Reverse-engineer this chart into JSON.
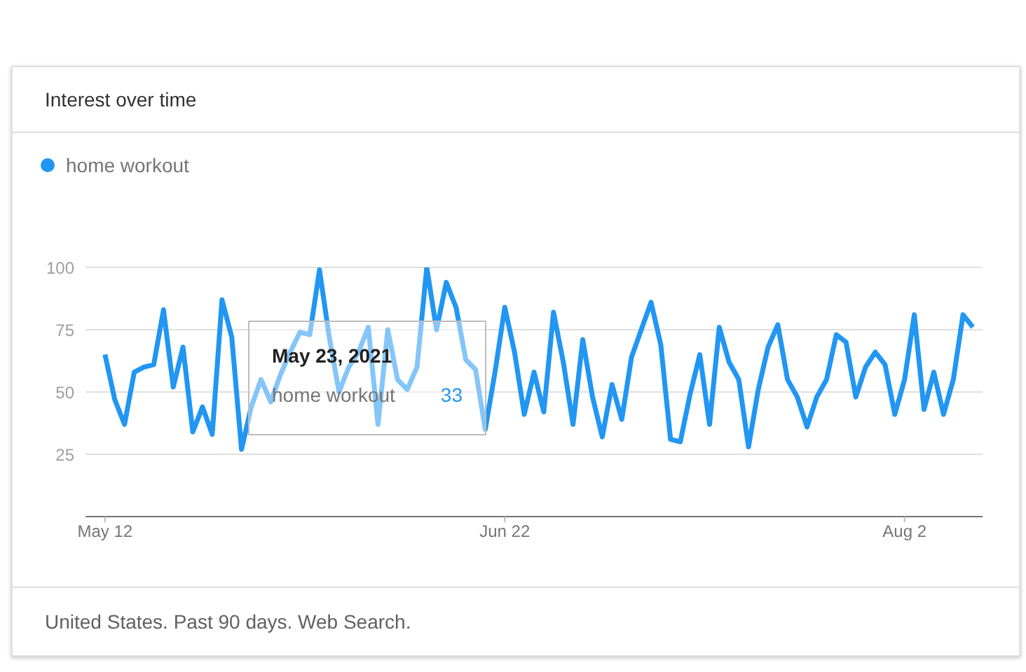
{
  "chart_data": {
    "type": "line",
    "title": "Interest over time",
    "x": [
      "2021-05-12",
      "2021-05-13",
      "2021-05-14",
      "2021-05-15",
      "2021-05-16",
      "2021-05-17",
      "2021-05-18",
      "2021-05-19",
      "2021-05-20",
      "2021-05-21",
      "2021-05-22",
      "2021-05-23",
      "2021-05-24",
      "2021-05-25",
      "2021-05-26",
      "2021-05-27",
      "2021-05-28",
      "2021-05-29",
      "2021-05-30",
      "2021-05-31",
      "2021-06-01",
      "2021-06-02",
      "2021-06-03",
      "2021-06-04",
      "2021-06-05",
      "2021-06-06",
      "2021-06-07",
      "2021-06-08",
      "2021-06-09",
      "2021-06-10",
      "2021-06-11",
      "2021-06-12",
      "2021-06-13",
      "2021-06-14",
      "2021-06-15",
      "2021-06-16",
      "2021-06-17",
      "2021-06-18",
      "2021-06-19",
      "2021-06-20",
      "2021-06-21",
      "2021-06-22",
      "2021-06-23",
      "2021-06-24",
      "2021-06-25",
      "2021-06-26",
      "2021-06-27",
      "2021-06-28",
      "2021-06-29",
      "2021-06-30",
      "2021-07-01",
      "2021-07-02",
      "2021-07-03",
      "2021-07-04",
      "2021-07-05",
      "2021-07-06",
      "2021-07-07",
      "2021-07-08",
      "2021-07-09",
      "2021-07-10",
      "2021-07-11",
      "2021-07-12",
      "2021-07-13",
      "2021-07-14",
      "2021-07-15",
      "2021-07-16",
      "2021-07-17",
      "2021-07-18",
      "2021-07-19",
      "2021-07-20",
      "2021-07-21",
      "2021-07-22",
      "2021-07-23",
      "2021-07-24",
      "2021-07-25",
      "2021-07-26",
      "2021-07-27",
      "2021-07-28",
      "2021-07-29",
      "2021-07-30",
      "2021-07-31",
      "2021-08-01",
      "2021-08-02",
      "2021-08-03",
      "2021-08-04",
      "2021-08-05",
      "2021-08-06",
      "2021-08-07",
      "2021-08-08",
      "2021-08-09"
    ],
    "series": [
      {
        "name": "home workout",
        "color": "#2196f3",
        "values": [
          65,
          47,
          37,
          58,
          60,
          61,
          83,
          52,
          68,
          34,
          44,
          33,
          87,
          72,
          27,
          44,
          55,
          46,
          57,
          66,
          74,
          73,
          99,
          72,
          50,
          60,
          66,
          76,
          37,
          75,
          55,
          51,
          60,
          100,
          75,
          94,
          84,
          63,
          59,
          35,
          58,
          84,
          66,
          41,
          58,
          42,
          82,
          62,
          37,
          71,
          48,
          32,
          53,
          39,
          64,
          75,
          86,
          69,
          31,
          30,
          49,
          65,
          37,
          76,
          62,
          55,
          28,
          51,
          68,
          77,
          55,
          48,
          36,
          48,
          55,
          73,
          70,
          48,
          60,
          66,
          61,
          41,
          55,
          81,
          43,
          58,
          41,
          55,
          81,
          76
        ]
      }
    ],
    "xlim": [
      "2021-05-10",
      "2021-08-10"
    ],
    "xticks": [
      {
        "value": "2021-05-12",
        "label": "May 12"
      },
      {
        "value": "2021-06-22",
        "label": "Jun 22"
      },
      {
        "value": "2021-08-02",
        "label": "Aug 2"
      }
    ],
    "ylim": [
      0,
      100
    ],
    "yticks": [
      25,
      50,
      75,
      100
    ],
    "grid": "y",
    "legend": "top left",
    "marker": "none",
    "line_style": "solid",
    "annotations": [
      "May 23, 2021",
      "33",
      "United States. Past 90 days. Web Search."
    ]
  }
}
